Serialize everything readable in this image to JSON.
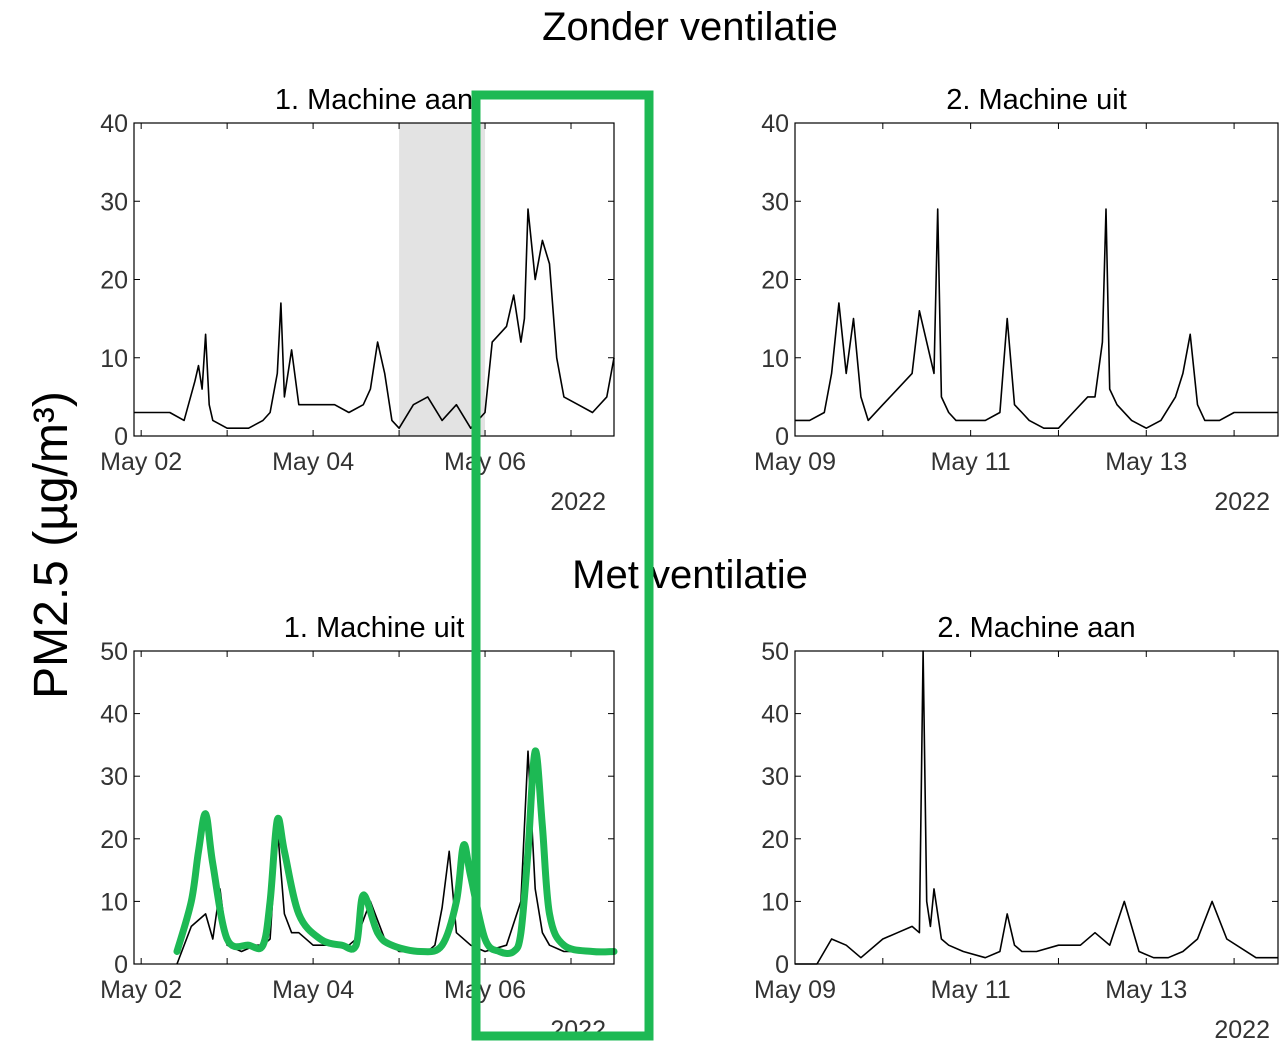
{
  "figure": {
    "ylabel": "PM2.5 (µg/m³)",
    "section_top": "Zonder ventilatie",
    "section_bottom": "Met ventilatie",
    "highlight_color": "#1db954"
  },
  "chart_data": [
    {
      "type": "line",
      "title": "1. Machine aan",
      "xlabel": "2022",
      "ylabel": "",
      "x_ticks": [
        "May 02",
        "May 04",
        "May 06"
      ],
      "x_range": [
        "2022-05-01T22:00",
        "2022-05-07T12:00"
      ],
      "ylim": [
        0,
        40
      ],
      "y_ticks": [
        0,
        10,
        20,
        30,
        40
      ],
      "shaded_interval": [
        "2022-05-05T00:00",
        "2022-05-06T00:00"
      ],
      "color": "#000000",
      "series": [
        {
          "x": [
            "2022-05-01T22:00",
            "2022-05-02T04:00",
            "2022-05-02T08:00",
            "2022-05-02T12:00",
            "2022-05-02T15:00",
            "2022-05-02T16:00",
            "2022-05-02T17:00",
            "2022-05-02T18:00",
            "2022-05-02T19:00",
            "2022-05-02T20:00",
            "2022-05-03T00:00",
            "2022-05-03T06:00",
            "2022-05-03T10:00",
            "2022-05-03T12:00",
            "2022-05-03T14:00",
            "2022-05-03T15:00",
            "2022-05-03T16:00",
            "2022-05-03T18:00",
            "2022-05-03T20:00",
            "2022-05-04T00:00",
            "2022-05-04T06:00",
            "2022-05-04T10:00",
            "2022-05-04T14:00",
            "2022-05-04T16:00",
            "2022-05-04T18:00",
            "2022-05-04T20:00",
            "2022-05-04T22:00",
            "2022-05-05T00:00",
            "2022-05-05T04:00",
            "2022-05-05T08:00",
            "2022-05-05T12:00",
            "2022-05-05T16:00",
            "2022-05-05T20:00",
            "2022-05-06T00:00",
            "2022-05-06T02:00",
            "2022-05-06T06:00",
            "2022-05-06T08:00",
            "2022-05-06T10:00",
            "2022-05-06T11:00",
            "2022-05-06T12:00",
            "2022-05-06T14:00",
            "2022-05-06T16:00",
            "2022-05-06T18:00",
            "2022-05-06T20:00",
            "2022-05-06T22:00",
            "2022-05-07T02:00",
            "2022-05-07T06:00",
            "2022-05-07T10:00",
            "2022-05-07T12:00"
          ],
          "y": [
            3,
            3,
            3,
            2,
            7,
            9,
            6,
            13,
            4,
            2,
            1,
            1,
            2,
            3,
            8,
            17,
            5,
            11,
            4,
            4,
            4,
            3,
            4,
            6,
            12,
            8,
            2,
            1,
            4,
            5,
            2,
            4,
            1,
            3,
            12,
            14,
            18,
            12,
            15,
            29,
            20,
            25,
            22,
            10,
            5,
            4,
            3,
            5,
            10
          ]
        }
      ]
    },
    {
      "type": "line",
      "title": "2. Machine uit",
      "xlabel": "2022",
      "ylabel": "",
      "x_ticks": [
        "May 09",
        "May 11",
        "May 13"
      ],
      "x_range": [
        "2022-05-09T00:00",
        "2022-05-14T12:00"
      ],
      "ylim": [
        0,
        40
      ],
      "y_ticks": [
        0,
        10,
        20,
        30,
        40
      ],
      "color": "#000000",
      "series": [
        {
          "x": [
            "2022-05-09T00:00",
            "2022-05-09T04:00",
            "2022-05-09T08:00",
            "2022-05-09T10:00",
            "2022-05-09T12:00",
            "2022-05-09T14:00",
            "2022-05-09T16:00",
            "2022-05-09T18:00",
            "2022-05-09T20:00",
            "2022-05-10T00:00",
            "2022-05-10T04:00",
            "2022-05-10T08:00",
            "2022-05-10T10:00",
            "2022-05-10T12:00",
            "2022-05-10T14:00",
            "2022-05-10T15:00",
            "2022-05-10T16:00",
            "2022-05-10T18:00",
            "2022-05-10T20:00",
            "2022-05-11T00:00",
            "2022-05-11T04:00",
            "2022-05-11T08:00",
            "2022-05-11T10:00",
            "2022-05-11T12:00",
            "2022-05-11T14:00",
            "2022-05-11T16:00",
            "2022-05-11T20:00",
            "2022-05-12T00:00",
            "2022-05-12T04:00",
            "2022-05-12T08:00",
            "2022-05-12T10:00",
            "2022-05-12T12:00",
            "2022-05-12T13:00",
            "2022-05-12T14:00",
            "2022-05-12T16:00",
            "2022-05-12T20:00",
            "2022-05-13T00:00",
            "2022-05-13T04:00",
            "2022-05-13T08:00",
            "2022-05-13T10:00",
            "2022-05-13T12:00",
            "2022-05-13T14:00",
            "2022-05-13T16:00",
            "2022-05-13T20:00",
            "2022-05-14T00:00",
            "2022-05-14T06:00",
            "2022-05-14T12:00"
          ],
          "y": [
            2,
            2,
            3,
            8,
            17,
            8,
            15,
            5,
            2,
            4,
            6,
            8,
            16,
            12,
            8,
            29,
            5,
            3,
            2,
            2,
            2,
            3,
            15,
            4,
            3,
            2,
            1,
            1,
            3,
            5,
            5,
            12,
            29,
            6,
            4,
            2,
            1,
            2,
            5,
            8,
            13,
            4,
            2,
            2,
            3,
            3,
            3
          ]
        }
      ]
    },
    {
      "type": "line",
      "title": "1. Machine uit",
      "xlabel": "2022",
      "ylabel": "",
      "x_ticks": [
        "May 02",
        "May 04",
        "May 06"
      ],
      "x_range": [
        "2022-05-01T22:00",
        "2022-05-07T12:00"
      ],
      "ylim": [
        0,
        50
      ],
      "y_ticks": [
        0,
        10,
        20,
        30,
        40,
        50
      ],
      "color": "#000000",
      "series": [
        {
          "x": [
            "2022-05-02T10:00",
            "2022-05-02T14:00",
            "2022-05-02T18:00",
            "2022-05-02T20:00",
            "2022-05-02T22:00",
            "2022-05-03T00:00",
            "2022-05-03T04:00",
            "2022-05-03T08:00",
            "2022-05-03T10:00",
            "2022-05-03T12:00",
            "2022-05-03T14:00",
            "2022-05-03T16:00",
            "2022-05-03T18:00",
            "2022-05-03T20:00",
            "2022-05-04T00:00",
            "2022-05-04T06:00",
            "2022-05-04T10:00",
            "2022-05-04T12:00",
            "2022-05-04T14:00",
            "2022-05-04T16:00",
            "2022-05-04T20:00",
            "2022-05-05T00:00",
            "2022-05-05T04:00",
            "2022-05-05T08:00",
            "2022-05-05T10:00",
            "2022-05-05T12:00",
            "2022-05-05T14:00",
            "2022-05-05T16:00",
            "2022-05-05T20:00",
            "2022-05-06T00:00",
            "2022-05-06T06:00",
            "2022-05-06T10:00",
            "2022-05-06T12:00",
            "2022-05-06T14:00",
            "2022-05-06T16:00",
            "2022-05-06T18:00",
            "2022-05-06T22:00",
            "2022-05-07T04:00",
            "2022-05-07T12:00"
          ],
          "y": [
            0,
            6,
            8,
            4,
            12,
            3,
            2,
            3,
            3,
            4,
            22,
            8,
            5,
            5,
            3,
            3,
            3,
            4,
            7,
            10,
            4,
            2,
            2,
            2,
            3,
            9,
            18,
            5,
            3,
            2,
            3,
            10,
            34,
            12,
            5,
            3,
            2,
            2,
            2
          ]
        }
      ],
      "trend_overlay": {
        "color": "#1db954",
        "x": [
          "2022-05-02T10:00",
          "2022-05-02T14:00",
          "2022-05-02T16:00",
          "2022-05-02T18:00",
          "2022-05-02T20:00",
          "2022-05-03T00:00",
          "2022-05-03T06:00",
          "2022-05-03T10:00",
          "2022-05-03T12:00",
          "2022-05-03T14:00",
          "2022-05-03T16:00",
          "2022-05-03T20:00",
          "2022-05-04T02:00",
          "2022-05-04T08:00",
          "2022-05-04T12:00",
          "2022-05-04T14:00",
          "2022-05-04T18:00",
          "2022-05-04T22:00",
          "2022-05-05T06:00",
          "2022-05-05T12:00",
          "2022-05-05T16:00",
          "2022-05-05T18:00",
          "2022-05-05T20:00",
          "2022-05-06T00:00",
          "2022-05-06T04:00",
          "2022-05-06T08:00",
          "2022-05-06T10:00",
          "2022-05-06T12:00",
          "2022-05-06T14:00",
          "2022-05-06T16:00",
          "2022-05-06T18:00",
          "2022-05-06T22:00",
          "2022-05-07T06:00",
          "2022-05-07T12:00"
        ],
        "y": [
          2,
          10,
          18,
          24,
          16,
          4,
          3,
          3,
          10,
          23,
          18,
          8,
          4,
          3,
          3,
          11,
          5,
          3,
          2,
          3,
          10,
          19,
          14,
          4,
          2,
          2,
          5,
          18,
          34,
          22,
          8,
          3,
          2,
          2
        ]
      }
    },
    {
      "type": "line",
      "title": "2. Machine aan",
      "xlabel": "2022",
      "ylabel": "",
      "x_ticks": [
        "May 09",
        "May 11",
        "May 13"
      ],
      "x_range": [
        "2022-05-09T00:00",
        "2022-05-14T12:00"
      ],
      "ylim": [
        0,
        50
      ],
      "y_ticks": [
        0,
        10,
        20,
        30,
        40,
        50
      ],
      "color": "#000000",
      "series": [
        {
          "x": [
            "2022-05-09T00:00",
            "2022-05-09T06:00",
            "2022-05-09T10:00",
            "2022-05-09T14:00",
            "2022-05-09T18:00",
            "2022-05-10T00:00",
            "2022-05-10T04:00",
            "2022-05-10T08:00",
            "2022-05-10T10:00",
            "2022-05-10T11:00",
            "2022-05-10T12:00",
            "2022-05-10T13:00",
            "2022-05-10T14:00",
            "2022-05-10T16:00",
            "2022-05-10T18:00",
            "2022-05-10T22:00",
            "2022-05-11T04:00",
            "2022-05-11T08:00",
            "2022-05-11T10:00",
            "2022-05-11T12:00",
            "2022-05-11T14:00",
            "2022-05-11T18:00",
            "2022-05-12T00:00",
            "2022-05-12T06:00",
            "2022-05-12T10:00",
            "2022-05-12T14:00",
            "2022-05-12T18:00",
            "2022-05-12T22:00",
            "2022-05-13T02:00",
            "2022-05-13T06:00",
            "2022-05-13T10:00",
            "2022-05-13T14:00",
            "2022-05-13T18:00",
            "2022-05-13T22:00",
            "2022-05-14T06:00",
            "2022-05-14T12:00"
          ],
          "y": [
            0,
            0,
            4,
            3,
            1,
            4,
            5,
            6,
            5,
            50,
            10,
            6,
            12,
            4,
            3,
            2,
            1,
            2,
            8,
            3,
            2,
            2,
            3,
            3,
            5,
            3,
            10,
            2,
            1,
            1,
            2,
            4,
            10,
            4,
            1,
            1
          ]
        }
      ]
    }
  ]
}
